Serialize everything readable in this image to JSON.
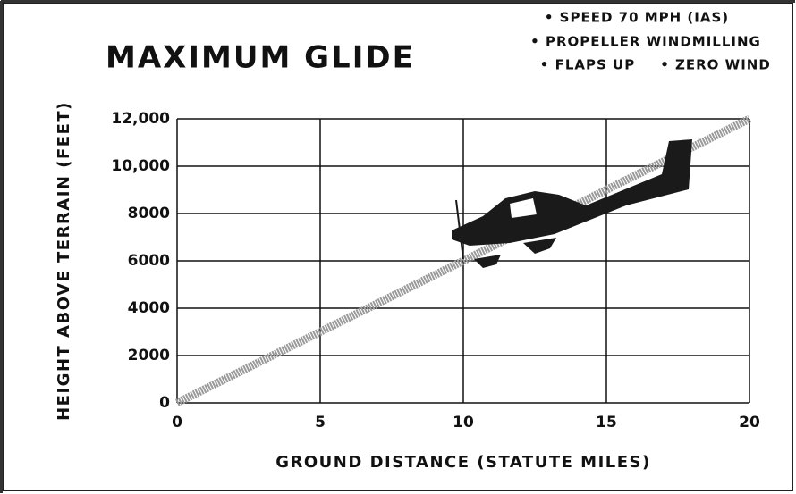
{
  "chart_data": {
    "type": "line",
    "title": "MAXIMUM GLIDE",
    "annotations": [
      "• SPEED 70 MPH (IAS)",
      "• PROPELLER WINDMILLING",
      "• FLAPS UP",
      "• ZERO WIND"
    ],
    "x_label": "GROUND DISTANCE (STATUTE MILES)",
    "y_label": "HEIGHT ABOVE TERRAIN (FEET)",
    "x": [
      0,
      20
    ],
    "values": [
      0,
      12000
    ],
    "color": "#9a9a9a",
    "xlim": [
      0,
      20
    ],
    "xticks": [
      0,
      5,
      10,
      15,
      20
    ],
    "ylim": [
      0,
      12000
    ],
    "yticks": [
      0,
      2000,
      4000,
      6000,
      8000,
      {
        "value": 10000,
        "label": "10,000"
      },
      {
        "value": 12000,
        "label": "12,000"
      }
    ],
    "grid": true
  }
}
